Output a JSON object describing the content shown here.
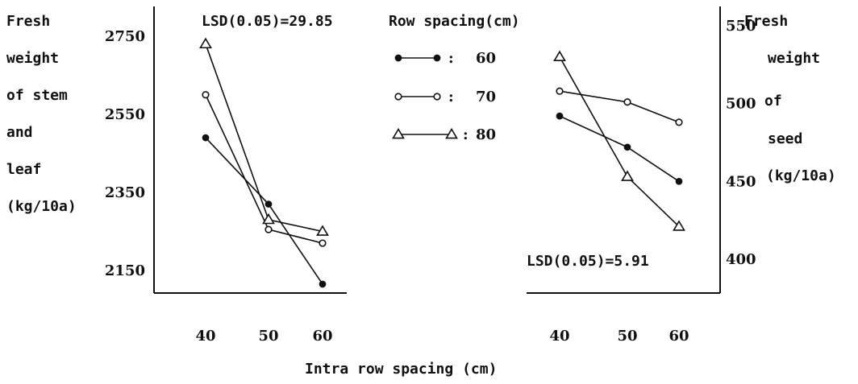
{
  "chart_data": [
    {
      "type": "line",
      "title": "",
      "ylabel_lines": [
        "Fresh",
        "weight",
        "of stem",
        "and",
        "leaf",
        "(kg/10a)"
      ],
      "xlabel": "Intra row spacing (cm)",
      "x": [
        40,
        50,
        60
      ],
      "xticks": [
        "40",
        "50",
        "60"
      ],
      "yticks": [
        "2750",
        "2550",
        "2350",
        "2150"
      ],
      "ylim": [
        2150,
        2750
      ],
      "annotation": "LSD(0.05)=29.85",
      "series": [
        {
          "name": "60",
          "marker": "filled-circle",
          "values": [
            2490,
            2320,
            2115
          ]
        },
        {
          "name": "70",
          "marker": "open-circle",
          "values": [
            2600,
            2255,
            2220
          ]
        },
        {
          "name": "80",
          "marker": "triangle",
          "values": [
            2730,
            2280,
            2250
          ]
        }
      ]
    },
    {
      "type": "line",
      "title": "",
      "ylabel_lines": [
        "Fresh",
        "weight",
        "of",
        "seed",
        "(kg/10a)"
      ],
      "xlabel": "Intra row spacing (cm)",
      "x": [
        40,
        50,
        60
      ],
      "xticks": [
        "40",
        "50",
        "60"
      ],
      "yticks": [
        "550",
        "500",
        "450",
        "400"
      ],
      "ylim": [
        400,
        550
      ],
      "annotation": "LSD(0.05)=5.91",
      "series": [
        {
          "name": "60",
          "marker": "filled-circle",
          "values": [
            492,
            472,
            450
          ]
        },
        {
          "name": "70",
          "marker": "open-circle",
          "values": [
            508,
            501,
            488
          ]
        },
        {
          "name": "80",
          "marker": "triangle",
          "values": [
            530,
            453,
            421
          ]
        }
      ]
    }
  ],
  "legend": {
    "title": "Row spacing(cm)",
    "items": [
      {
        "label": "60",
        "marker": "filled-circle"
      },
      {
        "label": "70",
        "marker": "open-circle"
      },
      {
        "label": "80",
        "marker": "triangle"
      }
    ]
  },
  "common_xlabel": "Intra row spacing (cm)"
}
